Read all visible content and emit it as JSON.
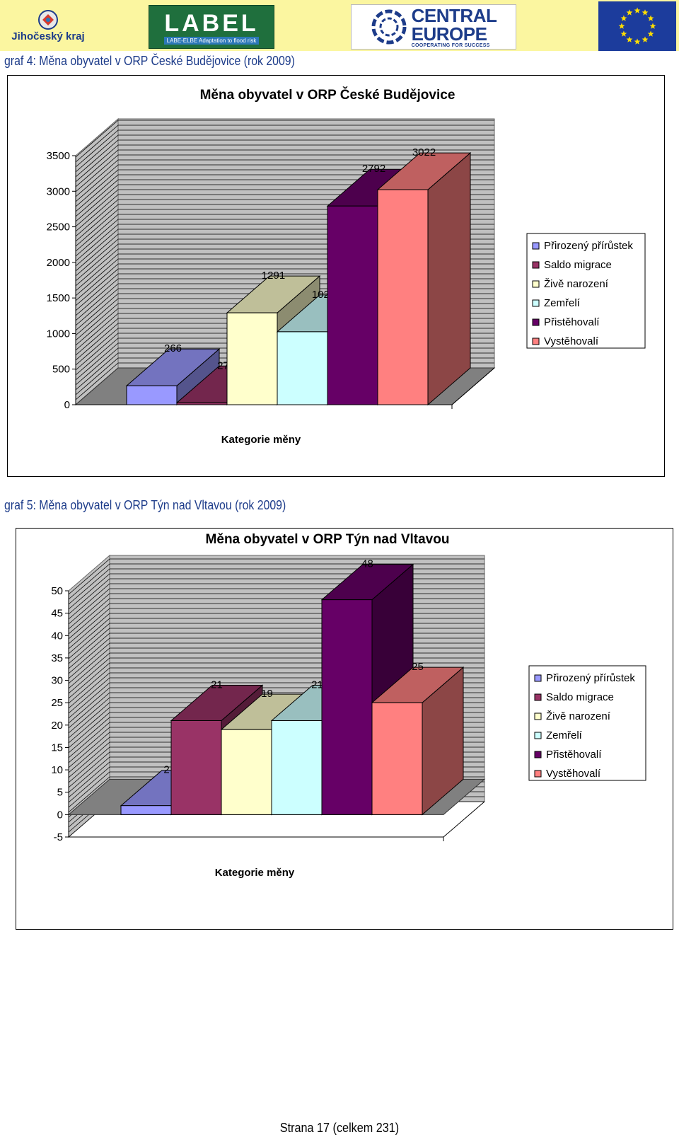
{
  "header": {
    "logo_jk_text": "Jihočeský kraj",
    "logo_label_word": "LABEL",
    "logo_label_sub": "LABE-ELBE Adaptation to flood risk",
    "logo_ce_line1": "CENTRAL",
    "logo_ce_line2": "EUROPE",
    "logo_ce_sub": "COOPERATING FOR SUCCESS",
    "colors": {
      "band": "#fbf6a0",
      "label_green": "#1f6f3d",
      "eu_blue": "#1c3c9c",
      "eu_star": "#ffdd00"
    }
  },
  "captions": {
    "graf4": "graf 4: Měna obyvatel v ORP České Budějovice (rok 2009)",
    "graf5": "graf  5: Měna obyvatel v ORP Týn nad Vltavou (rok 2009)"
  },
  "footer": {
    "page": "Strana 17 (celkem 231)"
  },
  "chart_data": [
    {
      "type": "bar",
      "title": "Měna obyvatel v ORP České Budějovice",
      "xlabel": "Kategorie měny",
      "ylabel": "",
      "ylim": [
        0,
        3500
      ],
      "yticks": [
        "0",
        "500",
        "1000",
        "1500",
        "2000",
        "2500",
        "3000",
        "3500"
      ],
      "grid": true,
      "legend_position": "right",
      "series": [
        {
          "name": "Přirozený přírůstek",
          "value": 266,
          "label": "266",
          "color": "#9999ff"
        },
        {
          "name": "Saldo migrace",
          "value": 27,
          "label": "27",
          "color": "#993366"
        },
        {
          "name": "Živě narození",
          "value": 1291,
          "label": "1291",
          "color": "#ffffcc"
        },
        {
          "name": "Zemřelí",
          "value": 1025,
          "label": "1025",
          "color": "#ccffff"
        },
        {
          "name": "Přistěhovalí",
          "value": 2792,
          "label": "2792",
          "color": "#660066"
        },
        {
          "name": "Vystěhovalí",
          "value": 3022,
          "label": "3022",
          "color": "#ff8080"
        }
      ]
    },
    {
      "type": "bar",
      "title": "Měna obyvatel v ORP Týn nad Vltavou",
      "xlabel": "Kategorie měny",
      "ylabel": "",
      "ylim": [
        -5,
        50
      ],
      "yticks": [
        "-5",
        "0",
        "5",
        "10",
        "15",
        "20",
        "25",
        "30",
        "35",
        "40",
        "45",
        "50"
      ],
      "grid": true,
      "legend_position": "right",
      "series": [
        {
          "name": "Přirozený přírůstek",
          "value": 2,
          "label": "2",
          "color": "#9999ff"
        },
        {
          "name": "Saldo migrace",
          "value": 21,
          "label": "21",
          "color": "#993366"
        },
        {
          "name": "Živě narození",
          "value": 19,
          "label": "19",
          "color": "#ffffcc"
        },
        {
          "name": "Zemřelí",
          "value": 21,
          "label": "21",
          "color": "#ccffff"
        },
        {
          "name": "Přistěhovalí",
          "value": 48,
          "label": "48",
          "color": "#660066"
        },
        {
          "name": "Vystěhovalí",
          "value": 25,
          "label": "25",
          "color": "#ff8080"
        }
      ]
    }
  ]
}
